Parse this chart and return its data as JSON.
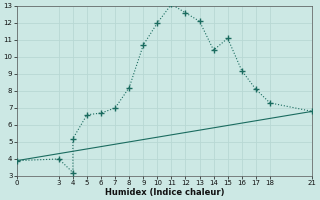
{
  "xlabel": "Humidex (Indice chaleur)",
  "ylabel": "",
  "background_color": "#cce8e4",
  "grid_color": "#b8d8d4",
  "line_color": "#1a6b5f",
  "curve_x": [
    0,
    3,
    4,
    4,
    5,
    6,
    7,
    8,
    9,
    10,
    11,
    12,
    13,
    14,
    15,
    16,
    17,
    18,
    21
  ],
  "curve_y": [
    3.9,
    4.0,
    3.2,
    5.2,
    6.6,
    6.7,
    7.0,
    8.2,
    10.7,
    12.0,
    13.1,
    12.6,
    12.1,
    10.4,
    11.1,
    9.2,
    8.1,
    7.3,
    6.8
  ],
  "trend_x": [
    0,
    21
  ],
  "trend_y": [
    3.9,
    6.8
  ],
  "xlim": [
    0,
    21
  ],
  "ylim": [
    3,
    13
  ],
  "xticks": [
    0,
    3,
    4,
    5,
    6,
    7,
    8,
    9,
    10,
    11,
    12,
    13,
    14,
    15,
    16,
    17,
    18,
    21
  ],
  "yticks": [
    3,
    4,
    5,
    6,
    7,
    8,
    9,
    10,
    11,
    12,
    13
  ],
  "marker": "+",
  "marker_size": 4,
  "linewidth": 0.8
}
